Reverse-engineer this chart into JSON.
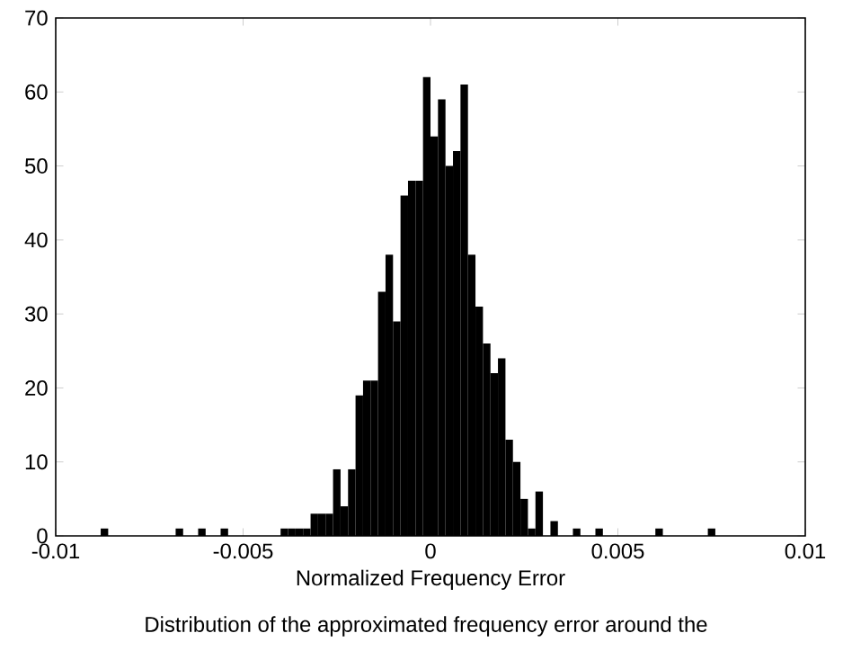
{
  "chart_data": {
    "type": "histogram",
    "xlabel": "Normalized Frequency Error",
    "color": "#000000",
    "bins": [
      -0.01,
      -0.0098,
      -0.0096,
      -0.0094,
      -0.0092,
      -0.009,
      -0.0088,
      -0.0086,
      -0.0084,
      -0.0082,
      -0.008,
      -0.0078,
      -0.0076,
      -0.0074,
      -0.0072,
      -0.007,
      -0.0068,
      -0.0066,
      -0.0064,
      -0.0062,
      -0.006,
      -0.0058,
      -0.0056,
      -0.0054,
      -0.0052,
      -0.005,
      -0.0048,
      -0.0046,
      -0.0044,
      -0.0042,
      -0.004,
      -0.0038,
      -0.0036,
      -0.0034,
      -0.0032,
      -0.003,
      -0.0028,
      -0.0026,
      -0.0024,
      -0.0022,
      -0.002,
      -0.0018,
      -0.0016,
      -0.0014,
      -0.0012,
      -0.001,
      -0.0008,
      -0.0006,
      -0.0004,
      -0.0002,
      0,
      0.0002,
      0.0004,
      0.0006,
      0.0008,
      0.001,
      0.0012,
      0.0014,
      0.0016,
      0.0018,
      0.002,
      0.0022,
      0.0024,
      0.0026,
      0.0028,
      0.003,
      0.0032,
      0.0034,
      0.0036,
      0.0038,
      0.004,
      0.0042,
      0.0044,
      0.0046,
      0.0048,
      0.005,
      0.0052,
      0.0054,
      0.0056,
      0.0058,
      0.006,
      0.0062,
      0.0064,
      0.0066,
      0.0068,
      0.007,
      0.0072,
      0.0074,
      0.0076,
      0.0078,
      0.008,
      0.0082,
      0.0084,
      0.0086,
      0.0088,
      0.009,
      0.0092,
      0.0094,
      0.0096,
      0.0098,
      0.01
    ],
    "values": [
      0,
      0,
      0,
      0,
      0,
      0,
      1,
      0,
      0,
      0,
      0,
      0,
      0,
      0,
      0,
      0,
      1,
      0,
      0,
      1,
      0,
      0,
      1,
      0,
      0,
      0,
      0,
      0,
      0,
      0,
      1,
      1,
      1,
      1,
      3,
      3,
      3,
      9,
      4,
      9,
      19,
      21,
      21,
      33,
      38,
      29,
      46,
      48,
      48,
      62,
      54,
      59,
      50,
      52,
      61,
      38,
      31,
      26,
      22,
      24,
      13,
      10,
      5,
      1,
      6,
      0,
      2,
      0,
      0,
      1,
      0,
      0,
      1,
      0,
      0,
      0,
      0,
      0,
      0,
      0,
      1,
      0,
      0,
      0,
      0,
      0,
      0,
      1,
      0,
      0,
      0,
      0,
      0,
      0,
      0,
      0,
      0,
      0,
      0,
      0
    ],
    "xlim": [
      -0.01,
      0.01
    ],
    "ylim": [
      0,
      70
    ],
    "xticks": [
      -0.01,
      -0.005,
      0,
      0.005,
      0.01
    ],
    "yticks": [
      0,
      10,
      20,
      30,
      40,
      50,
      60,
      70
    ],
    "annotations": [
      "Distribution of the approximated frequency error around the"
    ]
  }
}
